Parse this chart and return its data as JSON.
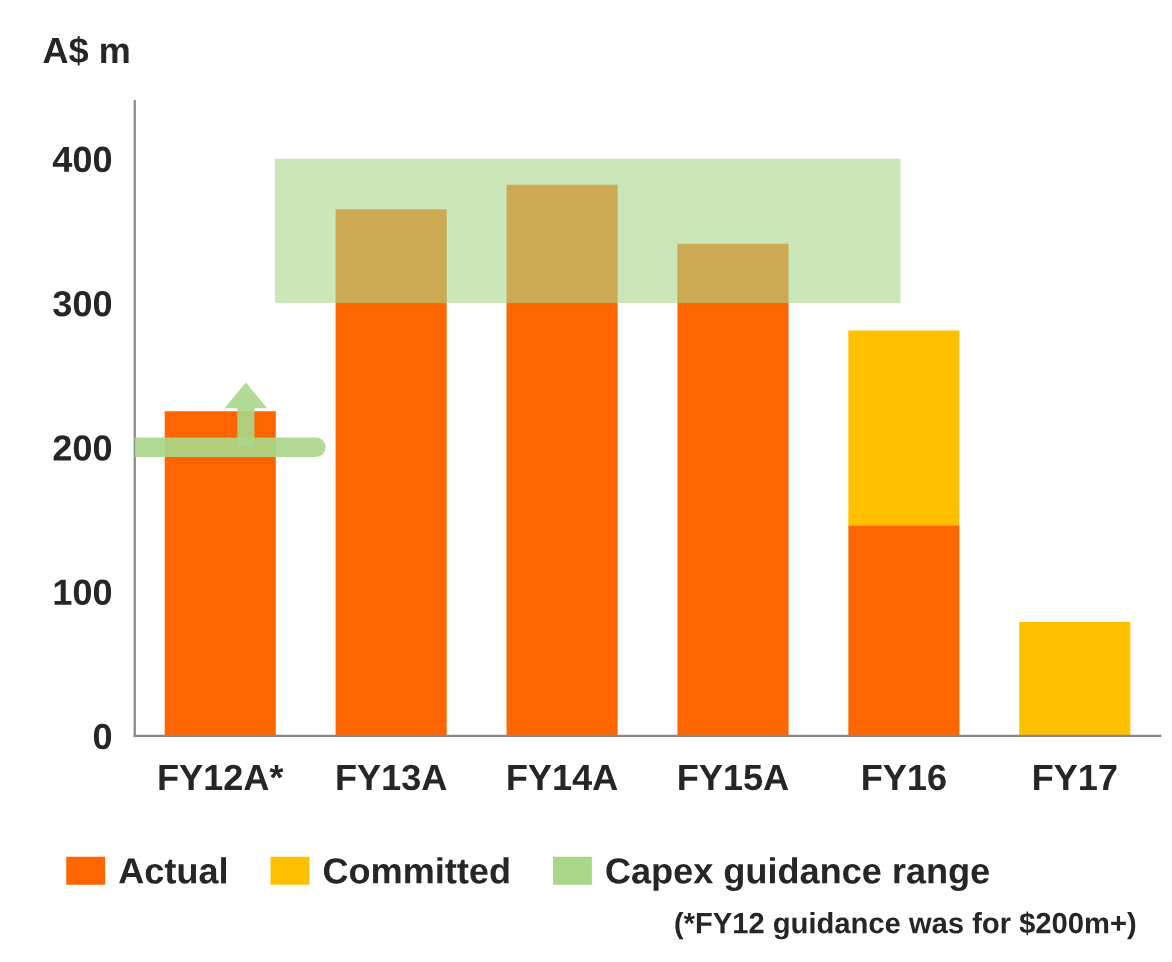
{
  "chart_data": {
    "type": "bar",
    "ylabel": "A$ m",
    "stacked": true,
    "categories": [
      "FY12A*",
      "FY13A",
      "FY14A",
      "FY15A",
      "FY16",
      "FY17"
    ],
    "series": [
      {
        "name": "Actual",
        "color": "#ff6600",
        "values": [
          225,
          365,
          382,
          341,
          146,
          null
        ]
      },
      {
        "name": "Committed",
        "color": "#ffc000",
        "values": [
          null,
          null,
          null,
          null,
          135,
          79
        ]
      }
    ],
    "bands": [
      {
        "axis": "y",
        "from": 300,
        "to": 400,
        "label": "Capex guidance range",
        "color": "#a9d78a"
      }
    ],
    "ref_lines": [
      {
        "axis": "y",
        "value": 200,
        "color": "#a9d78a"
      }
    ],
    "annotations": [
      "(*FY12 guidance was for $200m+)"
    ],
    "ylim": [
      0,
      440
    ],
    "yticks": [
      0,
      100,
      200,
      300,
      400
    ],
    "legend": "bottom",
    "grid": false
  }
}
